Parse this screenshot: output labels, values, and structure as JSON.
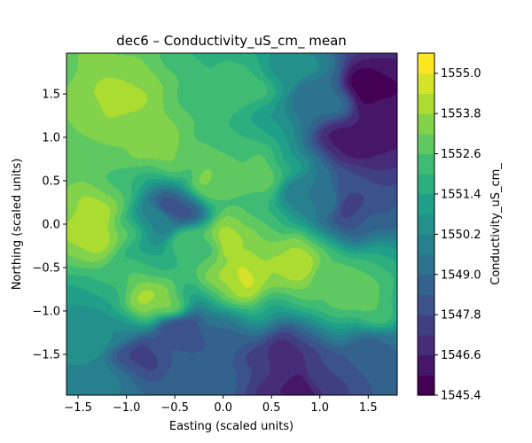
{
  "chart_data": {
    "type": "heatmap",
    "subtype": "filled-contour",
    "title": "dec6 – Conductivity_uS_cm_ mean",
    "xlabel": "Easting (scaled units)",
    "ylabel": "Northing (scaled units)",
    "colorbar_label": "Conductivity_uS_cm_",
    "colormap": "viridis",
    "xlim": [
      -1.62,
      1.8
    ],
    "ylim": [
      -1.97,
      1.97
    ],
    "xticks": [
      -1.5,
      -1.0,
      -0.5,
      0.0,
      0.5,
      1.0,
      1.5
    ],
    "xtick_labels": [
      "−1.5",
      "−1.0",
      "−0.5",
      "0.0",
      "0.5",
      "1.0",
      "1.5"
    ],
    "yticks": [
      -1.5,
      -1.0,
      -0.5,
      0.0,
      0.5,
      1.0,
      1.5
    ],
    "ytick_labels": [
      "−1.5",
      "−1.0",
      "−0.5",
      "0.0",
      "0.5",
      "1.0",
      "1.5"
    ],
    "colorbar_range": [
      1545.4,
      1555.6
    ],
    "colorbar_ticks": [
      1545.4,
      1546.6,
      1547.8,
      1549.0,
      1550.2,
      1551.4,
      1552.6,
      1553.8,
      1555.0
    ],
    "colorbar_tick_labels": [
      "1545.4",
      "1546.6",
      "1547.8",
      "1549.0",
      "1550.2",
      "1551.4",
      "1552.6",
      "1553.8",
      "1555.0"
    ],
    "levels": 17,
    "field_features": [
      {
        "x": -1.3,
        "y": 0.0,
        "value": 1554.4
      },
      {
        "x": -1.05,
        "y": 1.4,
        "value": 1553.9
      },
      {
        "x": -0.7,
        "y": 0.9,
        "value": 1553.5
      },
      {
        "x": -0.15,
        "y": 0.5,
        "value": 1553.3
      },
      {
        "x": 0.2,
        "y": -0.6,
        "value": 1554.5
      },
      {
        "x": 0.0,
        "y": -0.2,
        "value": 1554.2
      },
      {
        "x": 0.75,
        "y": -0.45,
        "value": 1554.1
      },
      {
        "x": -0.72,
        "y": -0.9,
        "value": 1554.0
      },
      {
        "x": 0.4,
        "y": 0.6,
        "value": 1552.8
      },
      {
        "x": 0.2,
        "y": 1.6,
        "value": 1552.3
      },
      {
        "x": -1.35,
        "y": -1.4,
        "value": 1550.5
      },
      {
        "x": -1.25,
        "y": -1.8,
        "value": 1549.8
      },
      {
        "x": -0.85,
        "y": -1.5,
        "value": 1547.6
      },
      {
        "x": -0.45,
        "y": -1.2,
        "value": 1547.9
      },
      {
        "x": 0.0,
        "y": -1.5,
        "value": 1548.5
      },
      {
        "x": 0.62,
        "y": -1.55,
        "value": 1546.8
      },
      {
        "x": 0.8,
        "y": -1.9,
        "value": 1546.3
      },
      {
        "x": 1.15,
        "y": -1.75,
        "value": 1547.8
      },
      {
        "x": 1.5,
        "y": -1.5,
        "value": 1548.7
      },
      {
        "x": 1.25,
        "y": -0.75,
        "value": 1553.0
      },
      {
        "x": 1.4,
        "y": -0.9,
        "value": 1552.8
      },
      {
        "x": 1.3,
        "y": 0.2,
        "value": 1547.6
      },
      {
        "x": 1.35,
        "y": 0.95,
        "value": 1546.3
      },
      {
        "x": 1.5,
        "y": 1.55,
        "value": 1545.7
      },
      {
        "x": 1.7,
        "y": 1.1,
        "value": 1546.2
      },
      {
        "x": 0.95,
        "y": 0.4,
        "value": 1549.6
      },
      {
        "x": 1.0,
        "y": 1.45,
        "value": 1549.3
      },
      {
        "x": 0.65,
        "y": 1.8,
        "value": 1550.7
      },
      {
        "x": -0.5,
        "y": 0.15,
        "value": 1547.8
      },
      {
        "x": -0.62,
        "y": 0.05,
        "value": 1550.2
      },
      {
        "x": -0.3,
        "y": -0.25,
        "value": 1552.3
      }
    ]
  }
}
